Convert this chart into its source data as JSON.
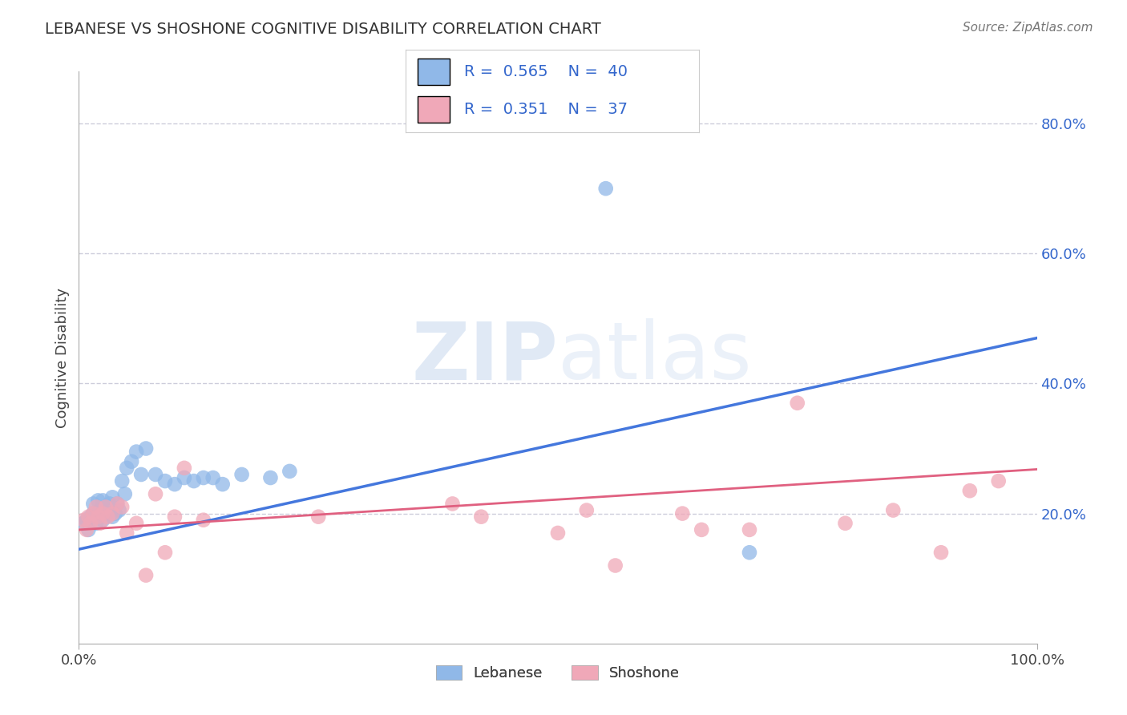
{
  "title": "LEBANESE VS SHOSHONE COGNITIVE DISABILITY CORRELATION CHART",
  "source": "Source: ZipAtlas.com",
  "ylabel": "Cognitive Disability",
  "xlim": [
    0,
    1
  ],
  "ylim": [
    0.0,
    0.88
  ],
  "ytick_right_vals": [
    0.2,
    0.4,
    0.6,
    0.8
  ],
  "ytick_right_labels": [
    "20.0%",
    "40.0%",
    "60.0%",
    "80.0%"
  ],
  "lebanese_R": 0.565,
  "lebanese_N": 40,
  "shoshone_R": 0.351,
  "shoshone_N": 37,
  "blue_color": "#90b8e8",
  "pink_color": "#f0a8b8",
  "blue_line_color": "#4477dd",
  "pink_line_color": "#e06080",
  "legend_text_color": "#3366cc",
  "background_color": "#ffffff",
  "grid_color": "#c8c8d8",
  "watermark": "ZIPatlas",
  "blue_line_x0": 0.0,
  "blue_line_y0": 0.145,
  "blue_line_x1": 1.0,
  "blue_line_y1": 0.47,
  "pink_line_x0": 0.0,
  "pink_line_y0": 0.175,
  "pink_line_x1": 1.0,
  "pink_line_y1": 0.268,
  "lebanese_x": [
    0.005,
    0.008,
    0.01,
    0.012,
    0.015,
    0.015,
    0.018,
    0.02,
    0.02,
    0.022,
    0.025,
    0.025,
    0.028,
    0.03,
    0.032,
    0.035,
    0.035,
    0.038,
    0.04,
    0.042,
    0.045,
    0.048,
    0.05,
    0.055,
    0.06,
    0.065,
    0.07,
    0.08,
    0.09,
    0.1,
    0.11,
    0.12,
    0.13,
    0.14,
    0.15,
    0.17,
    0.2,
    0.22,
    0.55,
    0.7
  ],
  "lebanese_y": [
    0.185,
    0.19,
    0.175,
    0.195,
    0.2,
    0.215,
    0.185,
    0.195,
    0.22,
    0.205,
    0.19,
    0.22,
    0.21,
    0.2,
    0.215,
    0.195,
    0.225,
    0.2,
    0.215,
    0.205,
    0.25,
    0.23,
    0.27,
    0.28,
    0.295,
    0.26,
    0.3,
    0.26,
    0.25,
    0.245,
    0.255,
    0.25,
    0.255,
    0.255,
    0.245,
    0.26,
    0.255,
    0.265,
    0.7,
    0.14
  ],
  "shoshone_x": [
    0.005,
    0.008,
    0.01,
    0.012,
    0.015,
    0.018,
    0.02,
    0.022,
    0.025,
    0.028,
    0.03,
    0.035,
    0.04,
    0.045,
    0.05,
    0.06,
    0.07,
    0.08,
    0.09,
    0.1,
    0.11,
    0.13,
    0.25,
    0.39,
    0.42,
    0.5,
    0.53,
    0.56,
    0.63,
    0.65,
    0.7,
    0.75,
    0.8,
    0.85,
    0.9,
    0.93,
    0.96
  ],
  "shoshone_y": [
    0.19,
    0.175,
    0.195,
    0.185,
    0.2,
    0.21,
    0.195,
    0.185,
    0.2,
    0.21,
    0.195,
    0.2,
    0.215,
    0.21,
    0.17,
    0.185,
    0.105,
    0.23,
    0.14,
    0.195,
    0.27,
    0.19,
    0.195,
    0.215,
    0.195,
    0.17,
    0.205,
    0.12,
    0.2,
    0.175,
    0.175,
    0.37,
    0.185,
    0.205,
    0.14,
    0.235,
    0.25
  ]
}
